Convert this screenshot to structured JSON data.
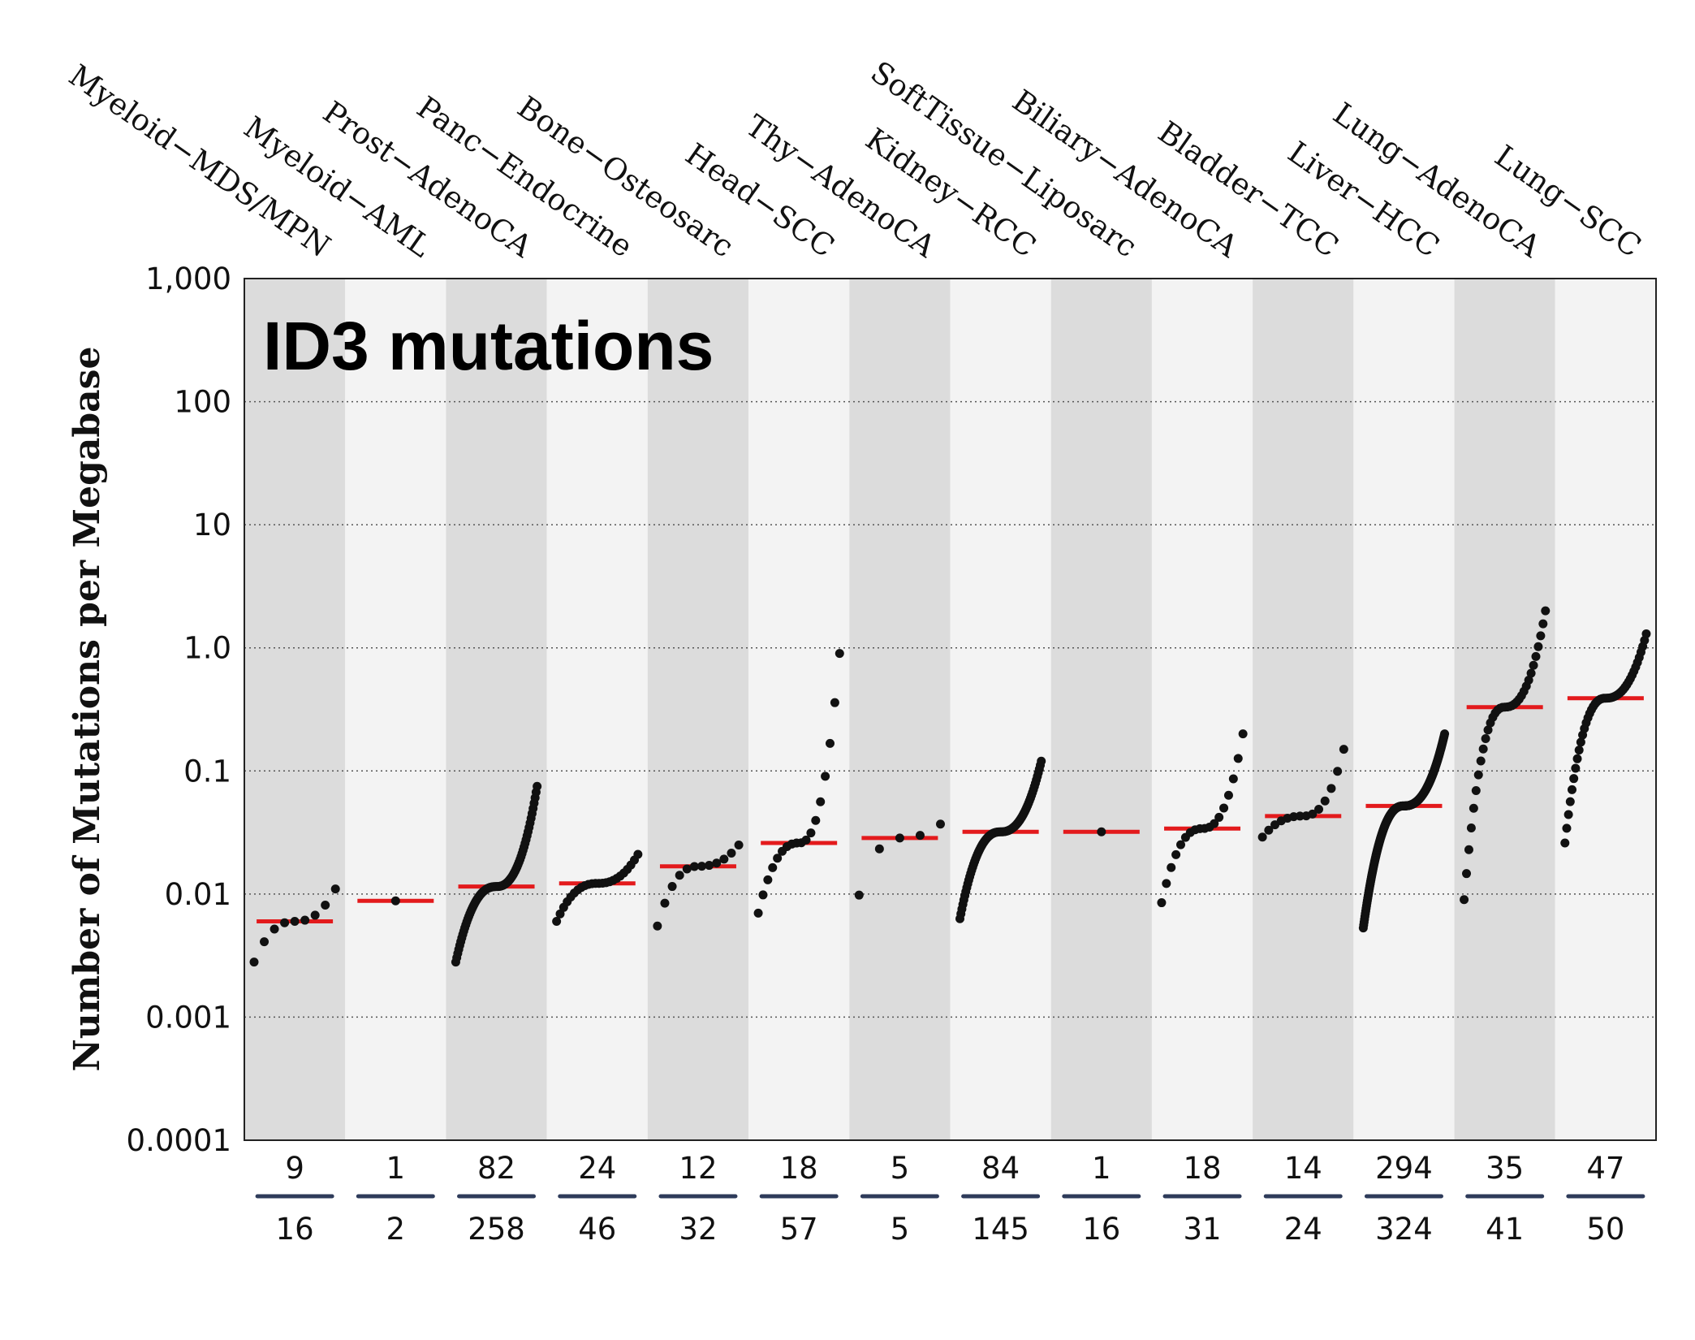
{
  "chart_data": {
    "type": "scatter",
    "title": "ID3 mutations",
    "ylabel": "Number of Mutations per Megabase",
    "yscale": "log",
    "ylim": [
      0.0001,
      1000
    ],
    "yticks": [
      "0.0001",
      "0.001",
      "0.01",
      "0.1",
      "1.0",
      "10",
      "100",
      "1,000"
    ],
    "grid": "dotted horizontal",
    "colors": {
      "band_dark": "#dcdcdc",
      "band_light": "#f3f3f3",
      "median": "#e31a1c",
      "point": "#111111",
      "divider": "#2e3b5a"
    },
    "categories": [
      {
        "name": "Myeloid−MDS/MPN",
        "mutated": "9",
        "total": "16",
        "median": 0.006,
        "min": 0.0028,
        "max": 0.011
      },
      {
        "name": "Myeloid−AML",
        "mutated": "1",
        "total": "2",
        "median": 0.0088,
        "min": 0.0088,
        "max": 0.0088
      },
      {
        "name": "Prost−AdenoCA",
        "mutated": "82",
        "total": "258",
        "median": 0.0115,
        "min": 0.0028,
        "max": 0.075
      },
      {
        "name": "Panc−Endocrine",
        "mutated": "24",
        "total": "46",
        "median": 0.0122,
        "min": 0.006,
        "max": 0.021
      },
      {
        "name": "Bone−Osteosarc",
        "mutated": "12",
        "total": "32",
        "median": 0.0168,
        "min": 0.0055,
        "max": 0.025
      },
      {
        "name": "Head−SCC",
        "mutated": "18",
        "total": "57",
        "median": 0.026,
        "min": 0.007,
        "max": 0.9
      },
      {
        "name": "Thy−AdenoCA",
        "mutated": "5",
        "total": "5",
        "median": 0.0285,
        "min": 0.0098,
        "max": 0.037
      },
      {
        "name": "Kidney−RCC",
        "mutated": "84",
        "total": "145",
        "median": 0.032,
        "min": 0.0063,
        "max": 0.12
      },
      {
        "name": "SoftTissue−Liposarc",
        "mutated": "1",
        "total": "16",
        "median": 0.032,
        "min": 0.032,
        "max": 0.032
      },
      {
        "name": "Biliary−AdenoCA",
        "mutated": "18",
        "total": "31",
        "median": 0.034,
        "min": 0.0085,
        "max": 0.2
      },
      {
        "name": "Bladder−TCC",
        "mutated": "14",
        "total": "24",
        "median": 0.043,
        "min": 0.029,
        "max": 0.15
      },
      {
        "name": "Liver−HCC",
        "mutated": "294",
        "total": "324",
        "median": 0.052,
        "min": 0.0053,
        "max": 0.2
      },
      {
        "name": "Lung−AdenoCA",
        "mutated": "35",
        "total": "41",
        "median": 0.33,
        "min": 0.009,
        "max": 2.0
      },
      {
        "name": "Lung−SCC",
        "mutated": "47",
        "total": "50",
        "median": 0.39,
        "min": 0.026,
        "max": 1.3
      }
    ]
  }
}
